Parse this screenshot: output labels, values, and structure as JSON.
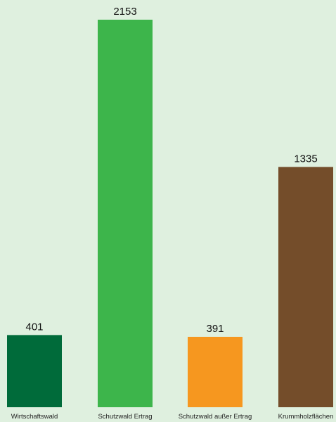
{
  "chart_data": {
    "type": "bar",
    "categories": [
      "Wirtschaftswald",
      "Schutzwald Ertrag",
      "Schutzwald außer Ertrag",
      "Krummholzflächen"
    ],
    "values": [
      401,
      2153,
      391,
      1335
    ],
    "value_labels": [
      "401",
      "2153",
      "391",
      "1335"
    ],
    "colors": [
      "#006b3a",
      "#3db54b",
      "#f6971f",
      "#744d2a"
    ],
    "ylim": [
      0,
      2153
    ],
    "grid": false,
    "legend": "none",
    "title": "",
    "xlabel": "",
    "ylabel": ""
  },
  "background_color": "#dff0df"
}
